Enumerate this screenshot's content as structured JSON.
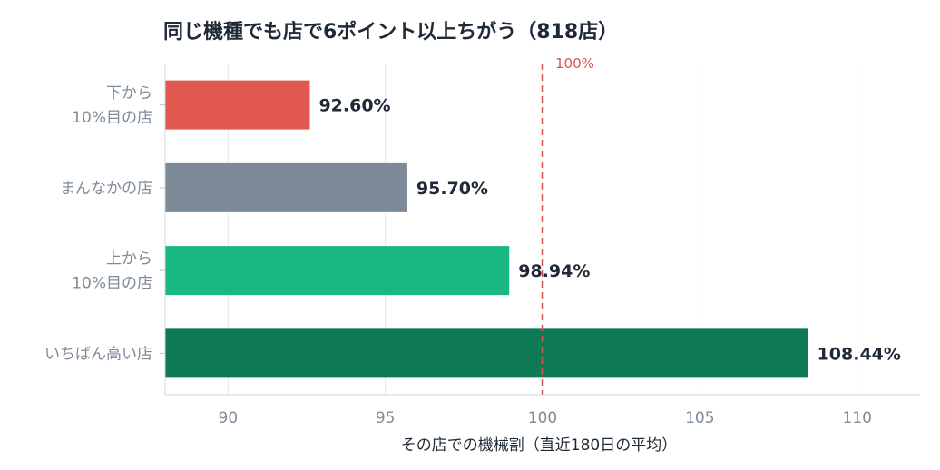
{
  "chart_data": {
    "type": "bar",
    "orientation": "horizontal",
    "title": "同じ機種でも店で6ポイント以上ちがう（818店）",
    "xlabel": "その店での機械割（直近180日の平均）",
    "ylabel": "",
    "xlim": [
      88,
      112
    ],
    "xticks": [
      90,
      95,
      100,
      105,
      110
    ],
    "grid": true,
    "categories": [
      [
        "下から",
        "10%目の店"
      ],
      [
        "まんなかの店"
      ],
      [
        "上から",
        "10%目の店"
      ],
      [
        "いちばん高い店"
      ]
    ],
    "values": [
      92.6,
      95.7,
      98.94,
      108.44
    ],
    "value_labels": [
      "92.60%",
      "95.70%",
      "98.94%",
      "108.44%"
    ],
    "colors": [
      "#e0584f",
      "#7d8a97",
      "#18b880",
      "#0e7a55"
    ],
    "reference_line": {
      "value": 100,
      "label": "100%",
      "color": "#d9534f"
    }
  }
}
